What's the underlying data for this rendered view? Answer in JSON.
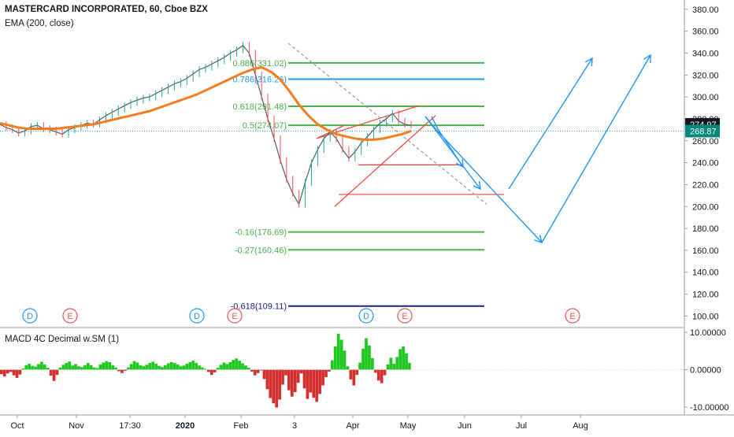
{
  "header": {
    "title": "MASTERCARD INCORPORATED, 60, Cboe BZX",
    "indicator": "EMA (200, close)"
  },
  "macd_panel": {
    "label": "MACD 4C Decimal w.SM (1)"
  },
  "colors": {
    "ema": "#f57c1f",
    "fib_green": "#4caf50",
    "fib_blue": "#2196f3",
    "fib_navy": "#1a237e",
    "trend_red": "#f44336",
    "forecast_blue": "#2196f3",
    "price_up": "#26a69a",
    "macd_green": "#1ec81e",
    "macd_red": "#d32f2f",
    "last_price_bg": "#131722",
    "ema_price_bg": "#00897b"
  },
  "chart_data": [
    {
      "type": "line",
      "title": "MASTERCARD INCORPORATED, 60, Cboe BZX",
      "y_axis": {
        "ylim": [
          93,
          387
        ],
        "ticks": [
          "380.00",
          "360.00",
          "340.00",
          "320.00",
          "300.00",
          "280.00",
          "260.00",
          "240.00",
          "220.00",
          "200.00",
          "180.00",
          "160.00",
          "140.00",
          "120.00",
          "100.00"
        ],
        "tick_values": [
          380,
          360,
          340,
          320,
          300,
          280,
          260,
          240,
          220,
          200,
          180,
          160,
          140,
          120,
          100
        ]
      },
      "x_axis": {
        "ticks": [
          "Oct",
          "Nov",
          "17:30",
          "2020",
          "Feb",
          "3",
          "Apr",
          "May",
          "Jun",
          "Jul",
          "Aug"
        ],
        "bold_ticks": [
          "2020"
        ]
      },
      "price_labels": [
        {
          "text": "274.97",
          "value": 274.97,
          "kind": "last"
        },
        {
          "text": "268.87",
          "value": 268.87,
          "kind": "ema"
        }
      ],
      "series": [
        {
          "name": "",
          "kind": "price",
          "values": [
            275,
            272,
            270,
            267,
            269,
            273,
            274,
            271,
            270,
            268,
            266,
            270,
            272,
            274,
            276,
            275,
            279,
            283,
            286,
            289,
            292,
            295,
            297,
            299,
            300,
            303,
            306,
            309,
            312,
            314,
            317,
            321,
            325,
            327,
            330,
            333,
            336,
            340,
            343,
            347,
            340,
            320,
            300,
            280,
            262,
            242,
            225,
            212,
            202,
            222,
            240,
            252,
            262,
            268,
            262,
            252,
            244,
            250,
            258,
            264,
            270,
            276,
            280,
            285,
            278,
            275,
            274
          ],
          "xlim_index": [
            0,
            66
          ]
        },
        {
          "name": "EMA (200, close)",
          "kind": "ema",
          "values": [
            276,
            274,
            272,
            271,
            271,
            271,
            271,
            272,
            273,
            274,
            275,
            277,
            279,
            281,
            283,
            285,
            287,
            290,
            293,
            296,
            299,
            302,
            306,
            310,
            314,
            318,
            322,
            325,
            327,
            323,
            316,
            305,
            293,
            283,
            275,
            270,
            266,
            264,
            262,
            261,
            261,
            262,
            264,
            266,
            268.87
          ]
        }
      ],
      "fib_levels": [
        {
          "label": "0.886(331.02)",
          "value": 331.02,
          "color": "fib_green"
        },
        {
          "label": "0.786(316.26)",
          "value": 316.26,
          "color": "fib_blue"
        },
        {
          "label": "0.618(291.48)",
          "value": 291.48,
          "color": "fib_green"
        },
        {
          "label": "0.5(274.07)",
          "value": 274.07,
          "color": "fib_green"
        },
        {
          "label": "-0.16(176.69)",
          "value": 176.69,
          "color": "fib_green"
        },
        {
          "label": "-0.27(160.46)",
          "value": 160.46,
          "color": "fib_green"
        },
        {
          "label": "-0.618(109.11)",
          "value": 109.11,
          "color": "fib_navy"
        }
      ],
      "event_markers": [
        {
          "text": "D",
          "kind": "dividend"
        },
        {
          "text": "E",
          "kind": "earnings"
        },
        {
          "text": "D",
          "kind": "dividend"
        },
        {
          "text": "E",
          "kind": "earnings"
        },
        {
          "text": "D",
          "kind": "dividend"
        },
        {
          "text": "E",
          "kind": "earnings"
        },
        {
          "text": "E",
          "kind": "earnings"
        }
      ]
    },
    {
      "type": "bar",
      "title": "MACD 4C Decimal w.SM (1)",
      "y_axis": {
        "ylim": [
          -11.5,
          11.5
        ],
        "ticks": [
          "10.00000",
          "0.00000",
          "-10.00000"
        ],
        "tick_values": [
          10,
          0,
          -10
        ]
      },
      "values": [
        -1.2,
        -1.8,
        -1.0,
        -0.6,
        -1.5,
        -2.2,
        -1.3,
        0.3,
        1.2,
        1.6,
        1.0,
        0.8,
        1.5,
        2.1,
        1.4,
        0.5,
        -1.6,
        -3.0,
        -1.4,
        0.6,
        1.3,
        1.8,
        2.2,
        1.1,
        1.5,
        0.9,
        0.7,
        1.2,
        1.8,
        1.2,
        0.6,
        0.4,
        1.4,
        1.9,
        2.3,
        2.0,
        1.2,
        0.6,
        -0.4,
        -0.9,
        -0.3,
        0.6,
        1.5,
        2.3,
        1.9,
        1.2,
        0.9,
        1.3,
        1.8,
        2.1,
        1.6,
        1.0,
        0.7,
        1.2,
        1.7,
        2.0,
        1.8,
        1.4,
        0.9,
        1.1,
        1.6,
        2.0,
        2.4,
        1.8,
        1.1,
        0.6,
        0.2,
        -0.6,
        -1.4,
        -0.7,
        0.5,
        1.3,
        1.9,
        1.5,
        2.0,
        2.6,
        3.0,
        2.4,
        1.7,
        1.1,
        0.5,
        -0.5,
        -1.5,
        -0.9,
        -0.2,
        -2.5,
        -5.2,
        -7.6,
        -9.0,
        -10.1,
        -8.0,
        -4.0,
        -1.5,
        -5.5,
        -7.2,
        -6.0,
        -3.5,
        -1.0,
        -5.0,
        -7.8,
        -6.1,
        -7.5,
        -8.6,
        -6.5,
        -4.2,
        -2.0,
        -0.5,
        2.5,
        6.2,
        9.6,
        8.0,
        5.1,
        0.9,
        -2.6,
        -4.2,
        -1.4,
        1.9,
        5.6,
        8.4,
        6.5,
        3.1,
        -0.8,
        -2.9,
        -3.6,
        -1.5,
        1.4,
        3.2,
        1.6,
        3.4,
        5.5,
        6.2,
        4.4,
        1.8
      ]
    }
  ]
}
